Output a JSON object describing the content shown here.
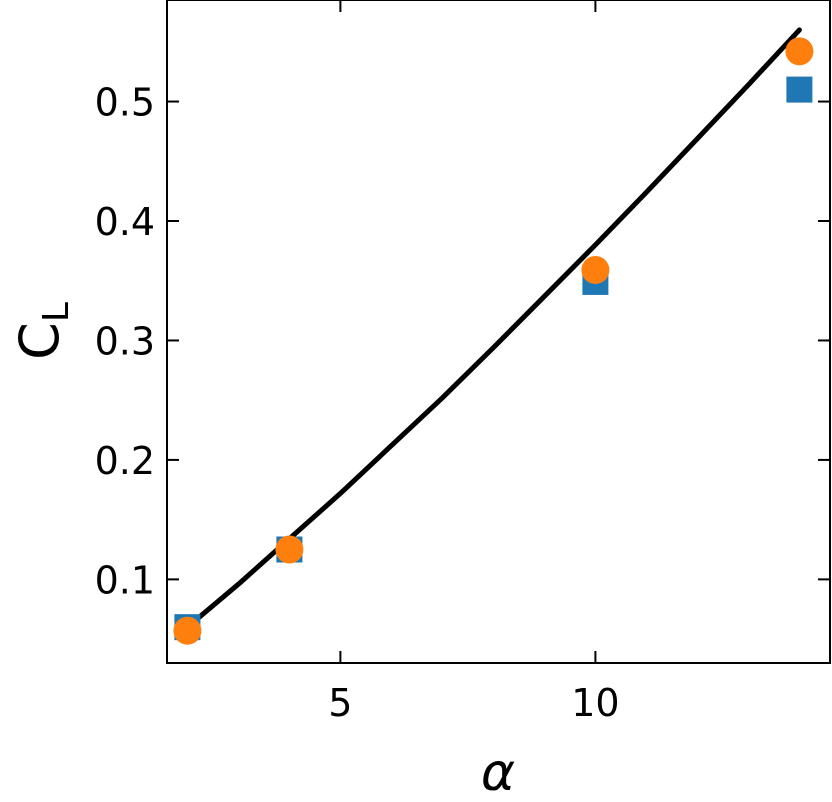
{
  "chart_data": {
    "type": "scatter",
    "xlabel": "α",
    "ylabel": "C",
    "ylabel_sub": "L",
    "xlim": [
      1.6,
      14.6
    ],
    "ylim": [
      0.03,
      0.585
    ],
    "xticks": [
      5,
      10
    ],
    "xtick_labels": [
      "5",
      "10"
    ],
    "yticks": [
      0.1,
      0.2,
      0.3,
      0.4,
      0.5
    ],
    "ytick_labels": [
      "0.1",
      "0.2",
      "0.3",
      "0.4",
      "0.5"
    ],
    "grid": false,
    "series": [
      {
        "marker": "square",
        "color": "#1f77b4",
        "points": [
          {
            "x": 2,
            "y": 0.06
          },
          {
            "x": 4,
            "y": 0.125
          },
          {
            "x": 10,
            "y": 0.349
          },
          {
            "x": 14,
            "y": 0.51
          }
        ]
      },
      {
        "marker": "circle",
        "color": "#ff7f0e",
        "points": [
          {
            "x": 2,
            "y": 0.057
          },
          {
            "x": 4,
            "y": 0.125
          },
          {
            "x": 10,
            "y": 0.359
          },
          {
            "x": 14,
            "y": 0.542
          }
        ]
      },
      {
        "marker": "line",
        "color": "#000000",
        "points": [
          {
            "x": 2,
            "y": 0.06
          },
          {
            "x": 3,
            "y": 0.096
          },
          {
            "x": 4,
            "y": 0.134
          },
          {
            "x": 5,
            "y": 0.172
          },
          {
            "x": 6,
            "y": 0.212
          },
          {
            "x": 7,
            "y": 0.252
          },
          {
            "x": 8,
            "y": 0.294
          },
          {
            "x": 9,
            "y": 0.337
          },
          {
            "x": 10,
            "y": 0.38
          },
          {
            "x": 11,
            "y": 0.424
          },
          {
            "x": 12,
            "y": 0.469
          },
          {
            "x": 13,
            "y": 0.514
          },
          {
            "x": 14,
            "y": 0.56
          }
        ]
      }
    ]
  }
}
